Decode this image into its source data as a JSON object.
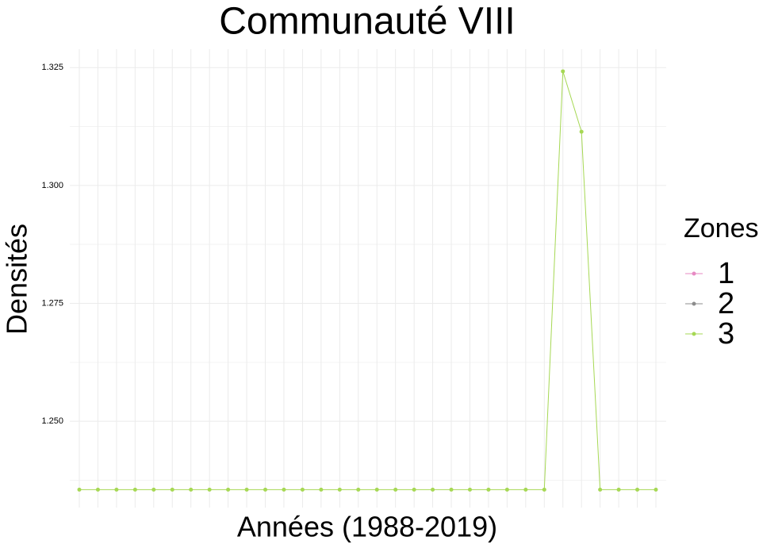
{
  "chart_data": {
    "type": "line",
    "title": "Communauté VIII",
    "x_label": "Années (1988-2019)",
    "y_label": "Densités",
    "legend_title": "Zones",
    "legend_position": "right",
    "categories": [
      null,
      null,
      null,
      null,
      null,
      null,
      null,
      null,
      null,
      null,
      null,
      null,
      null,
      null,
      null,
      null,
      null,
      null,
      null,
      null,
      null,
      null,
      null,
      null,
      null,
      null,
      null,
      null,
      null,
      null,
      null,
      null
    ],
    "series": [
      {
        "name": "1",
        "color": "#e78ac3",
        "values": [
          null,
          null,
          null,
          null,
          null,
          null,
          null,
          null,
          null,
          null,
          null,
          null,
          null,
          null,
          null,
          null,
          null,
          null,
          null,
          null,
          null,
          null,
          null,
          null,
          null,
          null,
          null,
          null,
          null,
          null,
          null,
          null
        ]
      },
      {
        "name": "2",
        "color": "#8c8c8c",
        "values": [
          null,
          null,
          null,
          null,
          null,
          null,
          null,
          null,
          null,
          null,
          null,
          null,
          null,
          null,
          null,
          null,
          null,
          null,
          null,
          null,
          null,
          null,
          null,
          null,
          null,
          null,
          null,
          null,
          null,
          null,
          null,
          null
        ]
      },
      {
        "name": "3",
        "color": "#a6d854",
        "values": [
          1.2355,
          1.2355,
          1.2355,
          1.2355,
          1.2355,
          1.2355,
          1.2355,
          1.2355,
          1.2355,
          1.2355,
          1.2355,
          1.2355,
          1.2355,
          1.2355,
          1.2355,
          1.2355,
          1.2355,
          1.2355,
          1.2355,
          1.2355,
          1.2355,
          1.2355,
          1.2355,
          1.2355,
          1.2355,
          1.2355,
          1.3242,
          1.3114,
          1.2355,
          1.2355,
          1.2355,
          1.2355
        ]
      }
    ],
    "ylim": [
      1.2317,
      1.3289
    ],
    "yticks": [
      {
        "value": 1.25,
        "label": "1.250"
      },
      1.275,
      {
        "value": 1.3,
        "label": "1.300"
      },
      1.325
    ],
    "grid": true
  }
}
